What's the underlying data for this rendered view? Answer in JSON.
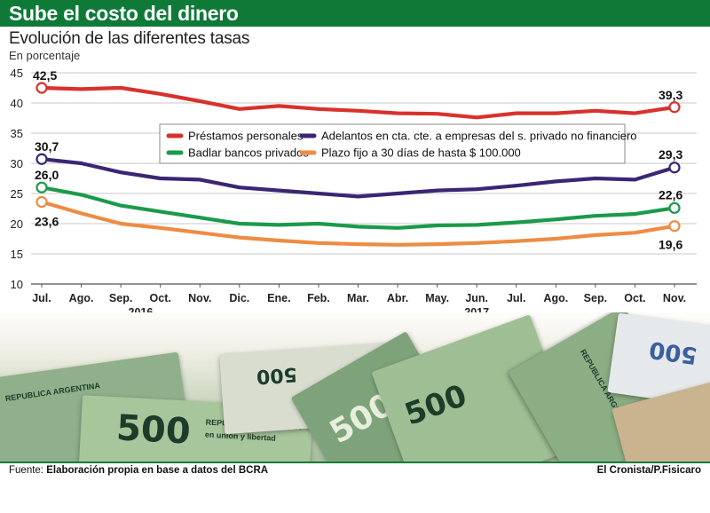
{
  "header": {
    "title": "Sube el costo del dinero",
    "subtitle": "Evolución de las diferentes tasas",
    "unit": "En porcentaje"
  },
  "footer": {
    "source_label": "Fuente:",
    "source_text": "Elaboración propia en base a datos del BCRA",
    "credit": "El Cronista/P.Fisicaro"
  },
  "decoration": {
    "banknote_value": "500",
    "banknote_text": "REPUBLICA ARGENTINA",
    "banknote_motto": "en union y libertad"
  },
  "chart_data": {
    "type": "line",
    "categories": [
      "Jul.",
      "Ago.",
      "Sep.",
      "Oct.",
      "Nov.",
      "Dic.",
      "Ene.",
      "Feb.",
      "Mar.",
      "Abr.",
      "May.",
      "Jun.",
      "Jul.",
      "Ago.",
      "Sep.",
      "Oct.",
      "Nov."
    ],
    "year_labels": [
      {
        "label": "2016",
        "index": 2.5
      },
      {
        "label": "2017",
        "index": 11
      }
    ],
    "ylim": [
      10,
      45
    ],
    "yticks": [
      10,
      15,
      20,
      25,
      30,
      35,
      40,
      45
    ],
    "grid": true,
    "legend_position": "middle",
    "series": [
      {
        "name": "Préstamos personales",
        "color": "#d9312c",
        "values": [
          42.5,
          42.3,
          42.5,
          41.5,
          40.3,
          39.0,
          39.5,
          39.0,
          38.7,
          38.3,
          38.2,
          37.6,
          38.3,
          38.3,
          38.7,
          38.3,
          39.3
        ],
        "start_label": "42,5",
        "end_label": "39,3"
      },
      {
        "name": "Adelantos en cta. cte. a empresas del s. privado no financiero",
        "color": "#3a2673",
        "values": [
          30.7,
          30.0,
          28.5,
          27.5,
          27.3,
          26.0,
          25.5,
          25.0,
          24.5,
          25.0,
          25.5,
          25.7,
          26.3,
          27.0,
          27.5,
          27.3,
          29.3
        ],
        "start_label": "30,7",
        "end_label": "29,3"
      },
      {
        "name": "Badlar bancos privados",
        "color": "#1b9a4a",
        "values": [
          26.0,
          24.8,
          23.0,
          22.0,
          21.0,
          20.0,
          19.8,
          20.0,
          19.5,
          19.3,
          19.7,
          19.8,
          20.2,
          20.7,
          21.3,
          21.6,
          22.6
        ],
        "start_label": "26,0",
        "end_label": "22,6"
      },
      {
        "name": "Plazo fijo a 30 días de hasta $ 100.000",
        "color": "#ed8c43",
        "values": [
          23.6,
          21.7,
          20.0,
          19.3,
          18.5,
          17.7,
          17.2,
          16.8,
          16.6,
          16.5,
          16.6,
          16.8,
          17.1,
          17.5,
          18.1,
          18.5,
          19.6
        ],
        "start_label": "23,6",
        "end_label": "19,6"
      }
    ],
    "legend_rows": [
      [
        0,
        1
      ],
      [
        2,
        3
      ]
    ]
  }
}
